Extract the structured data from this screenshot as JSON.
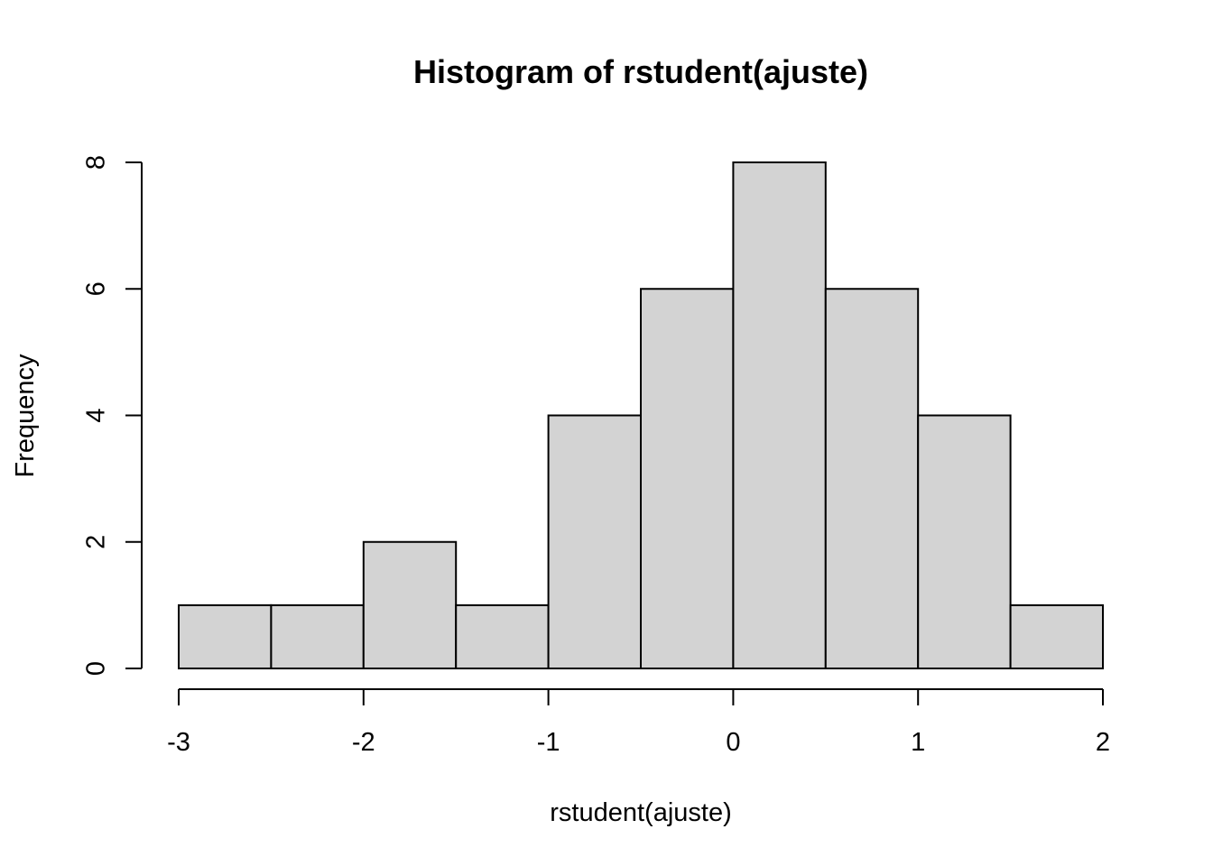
{
  "chart_data": {
    "type": "bar",
    "subtype": "histogram",
    "title": "Histogram of rstudent(ajuste)",
    "xlabel": "rstudent(ajuste)",
    "ylabel": "Frequency",
    "bins": [
      {
        "from": -3.0,
        "to": -2.5,
        "count": 1
      },
      {
        "from": -2.5,
        "to": -2.0,
        "count": 1
      },
      {
        "from": -2.0,
        "to": -1.5,
        "count": 2
      },
      {
        "from": -1.5,
        "to": -1.0,
        "count": 1
      },
      {
        "from": -1.0,
        "to": -0.5,
        "count": 4
      },
      {
        "from": -0.5,
        "to": 0.0,
        "count": 6
      },
      {
        "from": 0.0,
        "to": 0.5,
        "count": 8
      },
      {
        "from": 0.5,
        "to": 1.0,
        "count": 6
      },
      {
        "from": 1.0,
        "to": 1.5,
        "count": 4
      },
      {
        "from": 1.5,
        "to": 2.0,
        "count": 1
      }
    ],
    "xlim": [
      -3,
      2
    ],
    "ylim": [
      0,
      8
    ],
    "xticks": [
      "-3",
      "-2",
      "-1",
      "0",
      "1",
      "2"
    ],
    "yticks": [
      "0",
      "2",
      "4",
      "6",
      "8"
    ],
    "bar_color": "#d3d3d3",
    "edge_color": "#000000",
    "grid": false,
    "legend": "none"
  }
}
